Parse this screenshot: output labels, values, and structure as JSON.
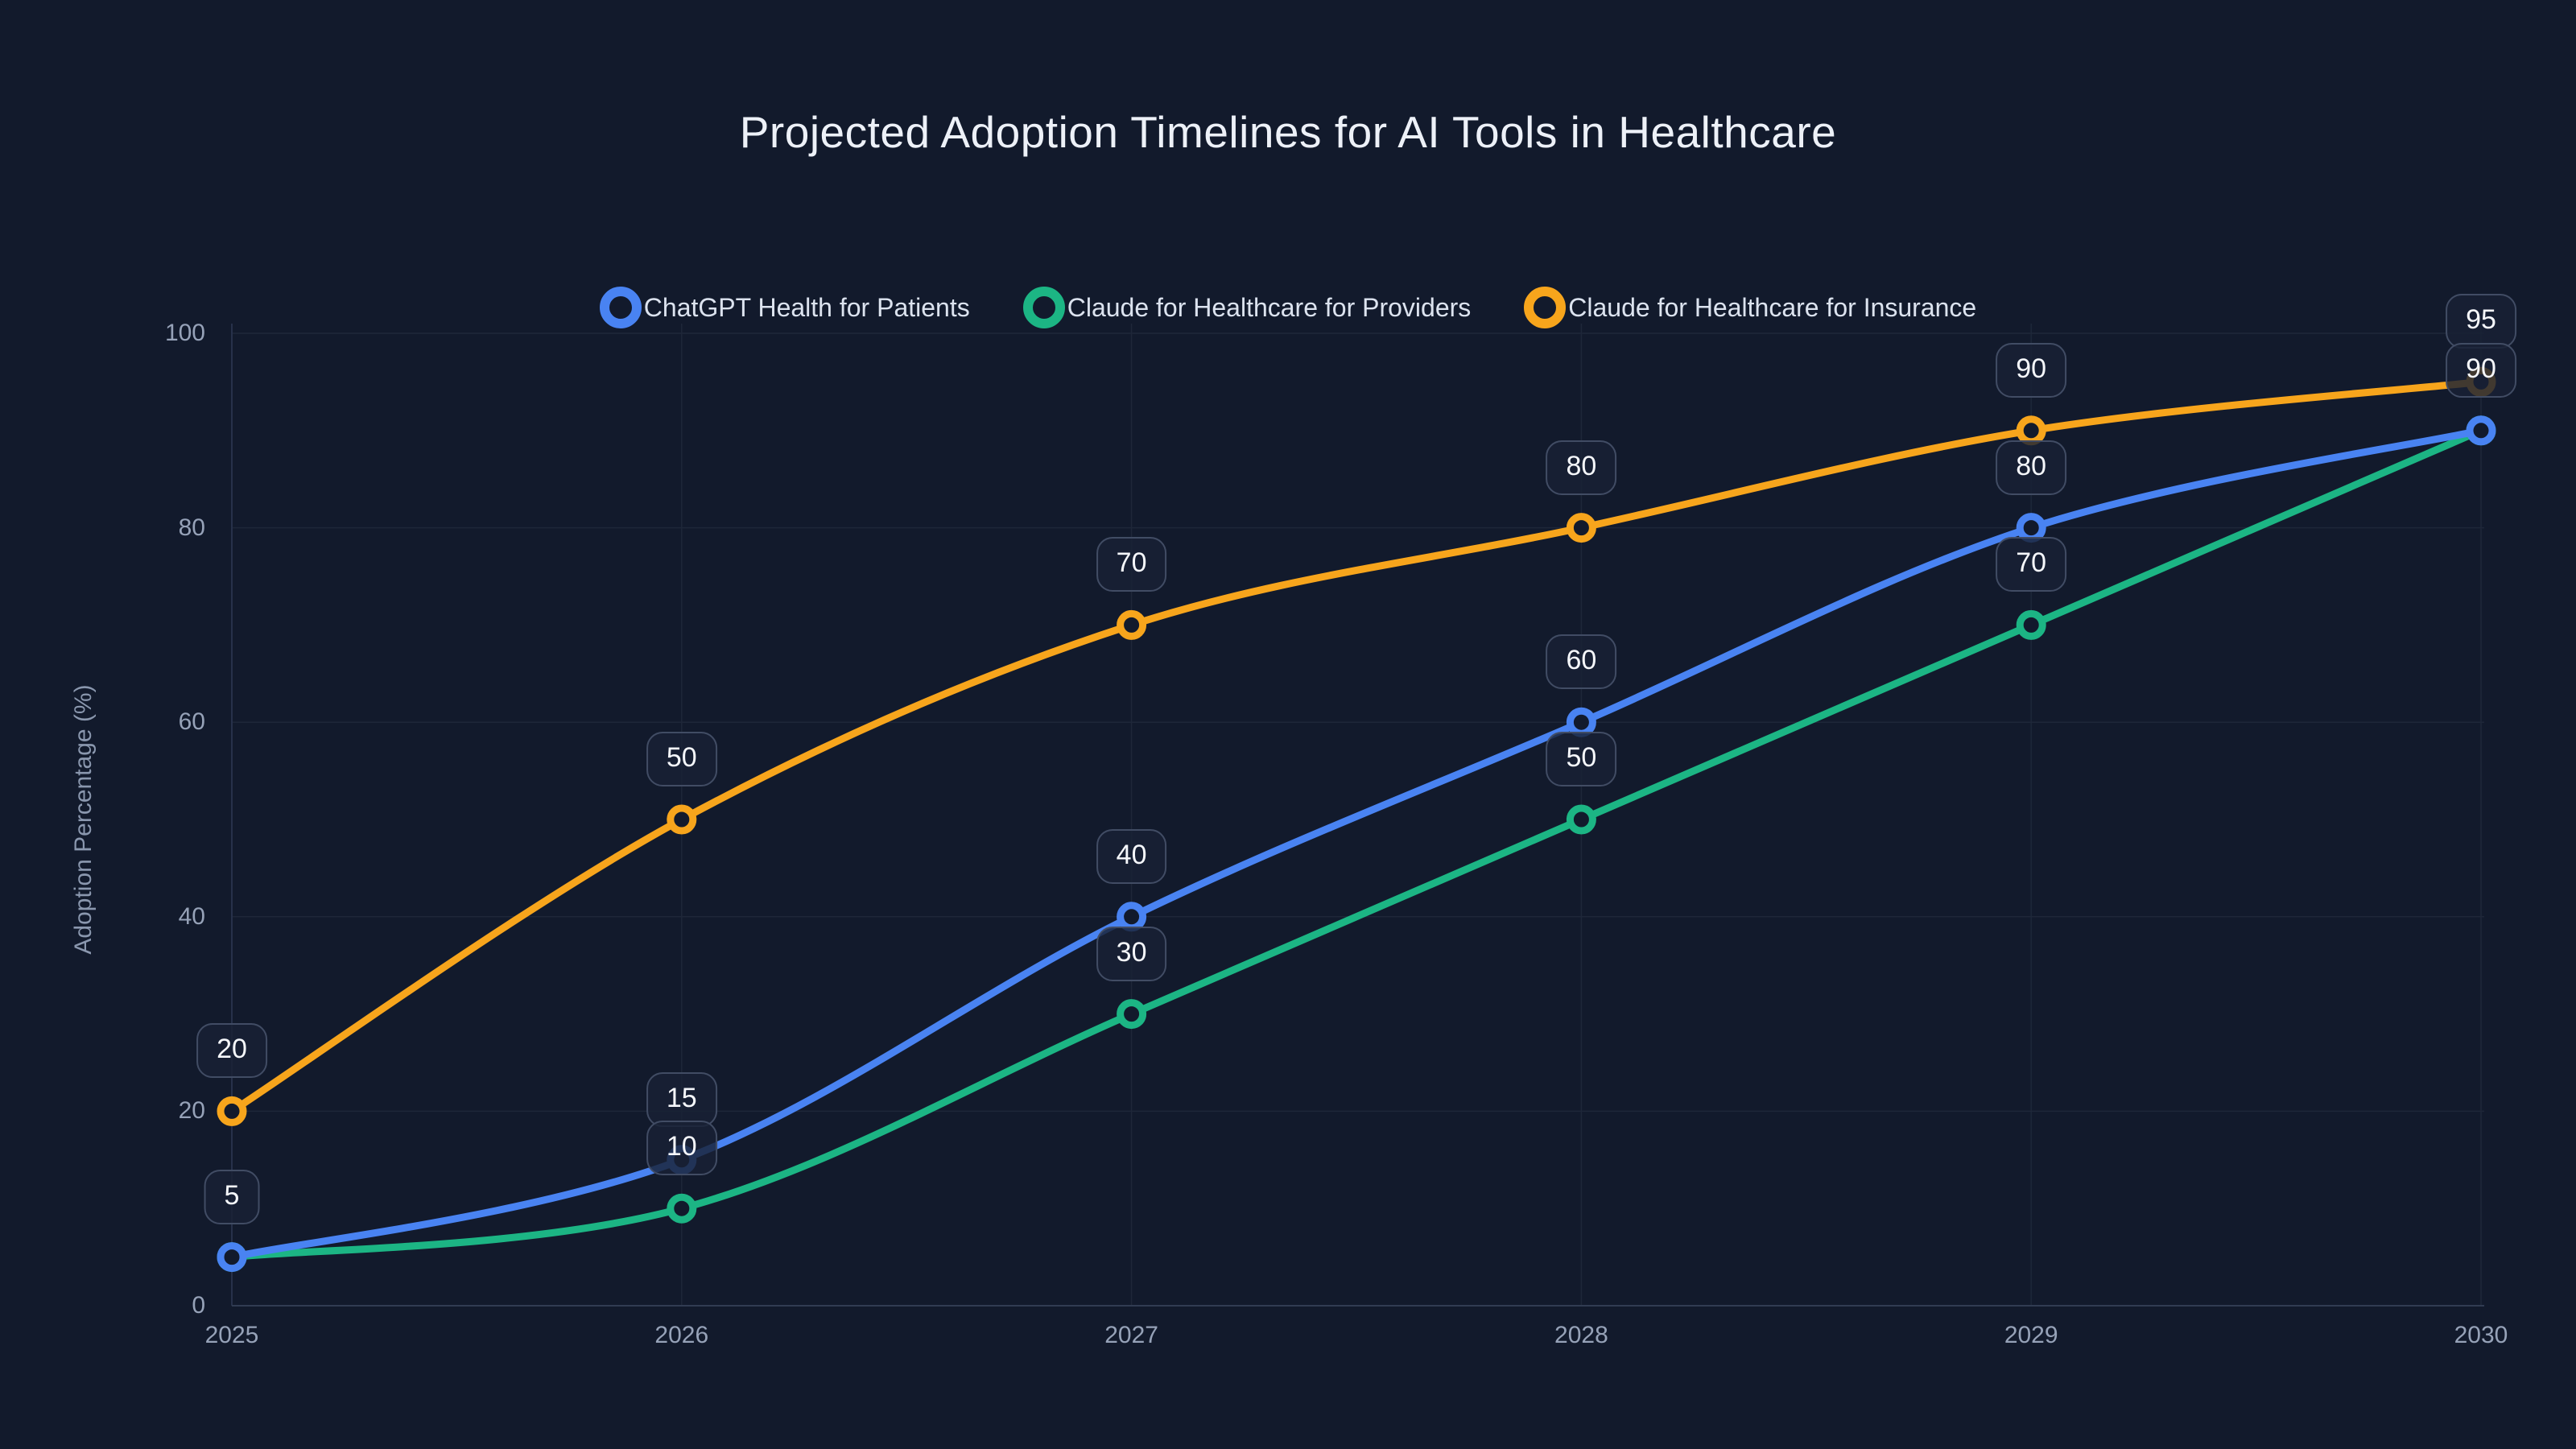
{
  "page": {
    "title": "Projected Adoption Timelines for AI Tools in Healthcare"
  },
  "colors": {
    "background": "#121A2C",
    "grid": "#1E2739",
    "axis": "#313C52",
    "tick_text": "#96A2B8",
    "title_text": "#EDF1F8",
    "legend_text": "#DCE3EF",
    "badge_border": "#414C64",
    "badge_text": "#F5F7FB",
    "series_blue": "#4983F2",
    "series_green": "#1CB584",
    "series_orange": "#F7A51C"
  },
  "chart_data": {
    "type": "line",
    "title": "Projected Adoption Timelines for AI Tools in Healthcare",
    "x": [
      2025,
      2026,
      2027,
      2028,
      2029,
      2030
    ],
    "xlabel": "",
    "ylabel": "Adoption Percentage (%)",
    "ylim": [
      0,
      100
    ],
    "yticks": [
      0,
      20,
      40,
      60,
      80,
      100
    ],
    "grid": true,
    "legend_position": "top",
    "point_style": "hollow-circle",
    "data_labels_in_rounded_badges": true,
    "series": [
      {
        "name": "ChatGPT Health for Patients",
        "color": "#4983F2",
        "values": [
          5,
          15,
          40,
          60,
          80,
          90
        ]
      },
      {
        "name": "Claude for Healthcare for Providers",
        "color": "#1CB584",
        "values": [
          5,
          10,
          30,
          50,
          70,
          90
        ]
      },
      {
        "name": "Claude for Healthcare for Insurance",
        "color": "#F7A51C",
        "values": [
          20,
          50,
          70,
          80,
          90,
          95
        ]
      }
    ]
  }
}
